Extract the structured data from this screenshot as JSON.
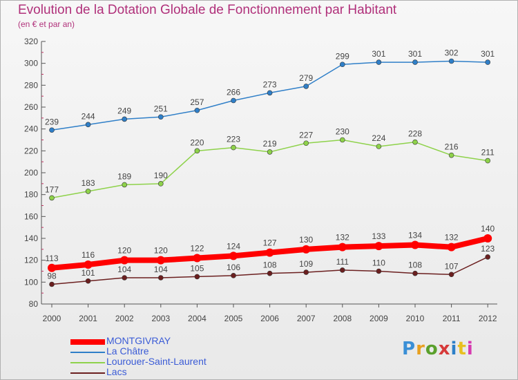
{
  "header": {
    "title": "Evolution de la Dotation Globale de Fonctionnement par Habitant",
    "subtitle": "(en € et par an)"
  },
  "logo": {
    "text": "Proxiti",
    "colors": [
      "#3a8fd6",
      "#e8a020",
      "#5aa02c",
      "#d63a3a",
      "#2c7fc8",
      "#e8c020",
      "#d63ab0"
    ]
  },
  "colors": {
    "title": "#b0307a",
    "axis": "#555555",
    "label": "#444444",
    "legend_text": "#3a5bd6"
  },
  "chart_data": {
    "type": "line",
    "title": "Evolution de la Dotation Globale de Fonctionnement par Habitant",
    "subtitle": "(en € et par an)",
    "categories": [
      "2000",
      "2001",
      "2002",
      "2003",
      "2004",
      "2005",
      "2006",
      "2007",
      "2008",
      "2009",
      "2010",
      "2011",
      "2012"
    ],
    "ylim": [
      80,
      320
    ],
    "yticks": [
      80,
      100,
      120,
      140,
      160,
      180,
      200,
      220,
      240,
      260,
      280,
      300,
      320
    ],
    "grid": false,
    "legend_position": "bottom",
    "series": [
      {
        "name": "MONTGIVRAY",
        "color": "#ff0000",
        "emphasis": true,
        "values": [
          113,
          116,
          120,
          120,
          122,
          124,
          127,
          130,
          132,
          133,
          134,
          132,
          140
        ]
      },
      {
        "name": "La Châtre",
        "color": "#2f7fc8",
        "emphasis": false,
        "values": [
          239,
          244,
          249,
          251,
          257,
          266,
          273,
          279,
          299,
          301,
          301,
          302,
          301
        ]
      },
      {
        "name": "Lourouer-Saint-Laurent",
        "color": "#8ed24a",
        "emphasis": false,
        "values": [
          177,
          183,
          189,
          190,
          220,
          223,
          219,
          227,
          230,
          224,
          228,
          216,
          211
        ]
      },
      {
        "name": "Lacs",
        "color": "#6b1f1f",
        "emphasis": false,
        "values": [
          98,
          101,
          104,
          104,
          105,
          106,
          108,
          109,
          111,
          110,
          108,
          107,
          123
        ]
      }
    ]
  }
}
